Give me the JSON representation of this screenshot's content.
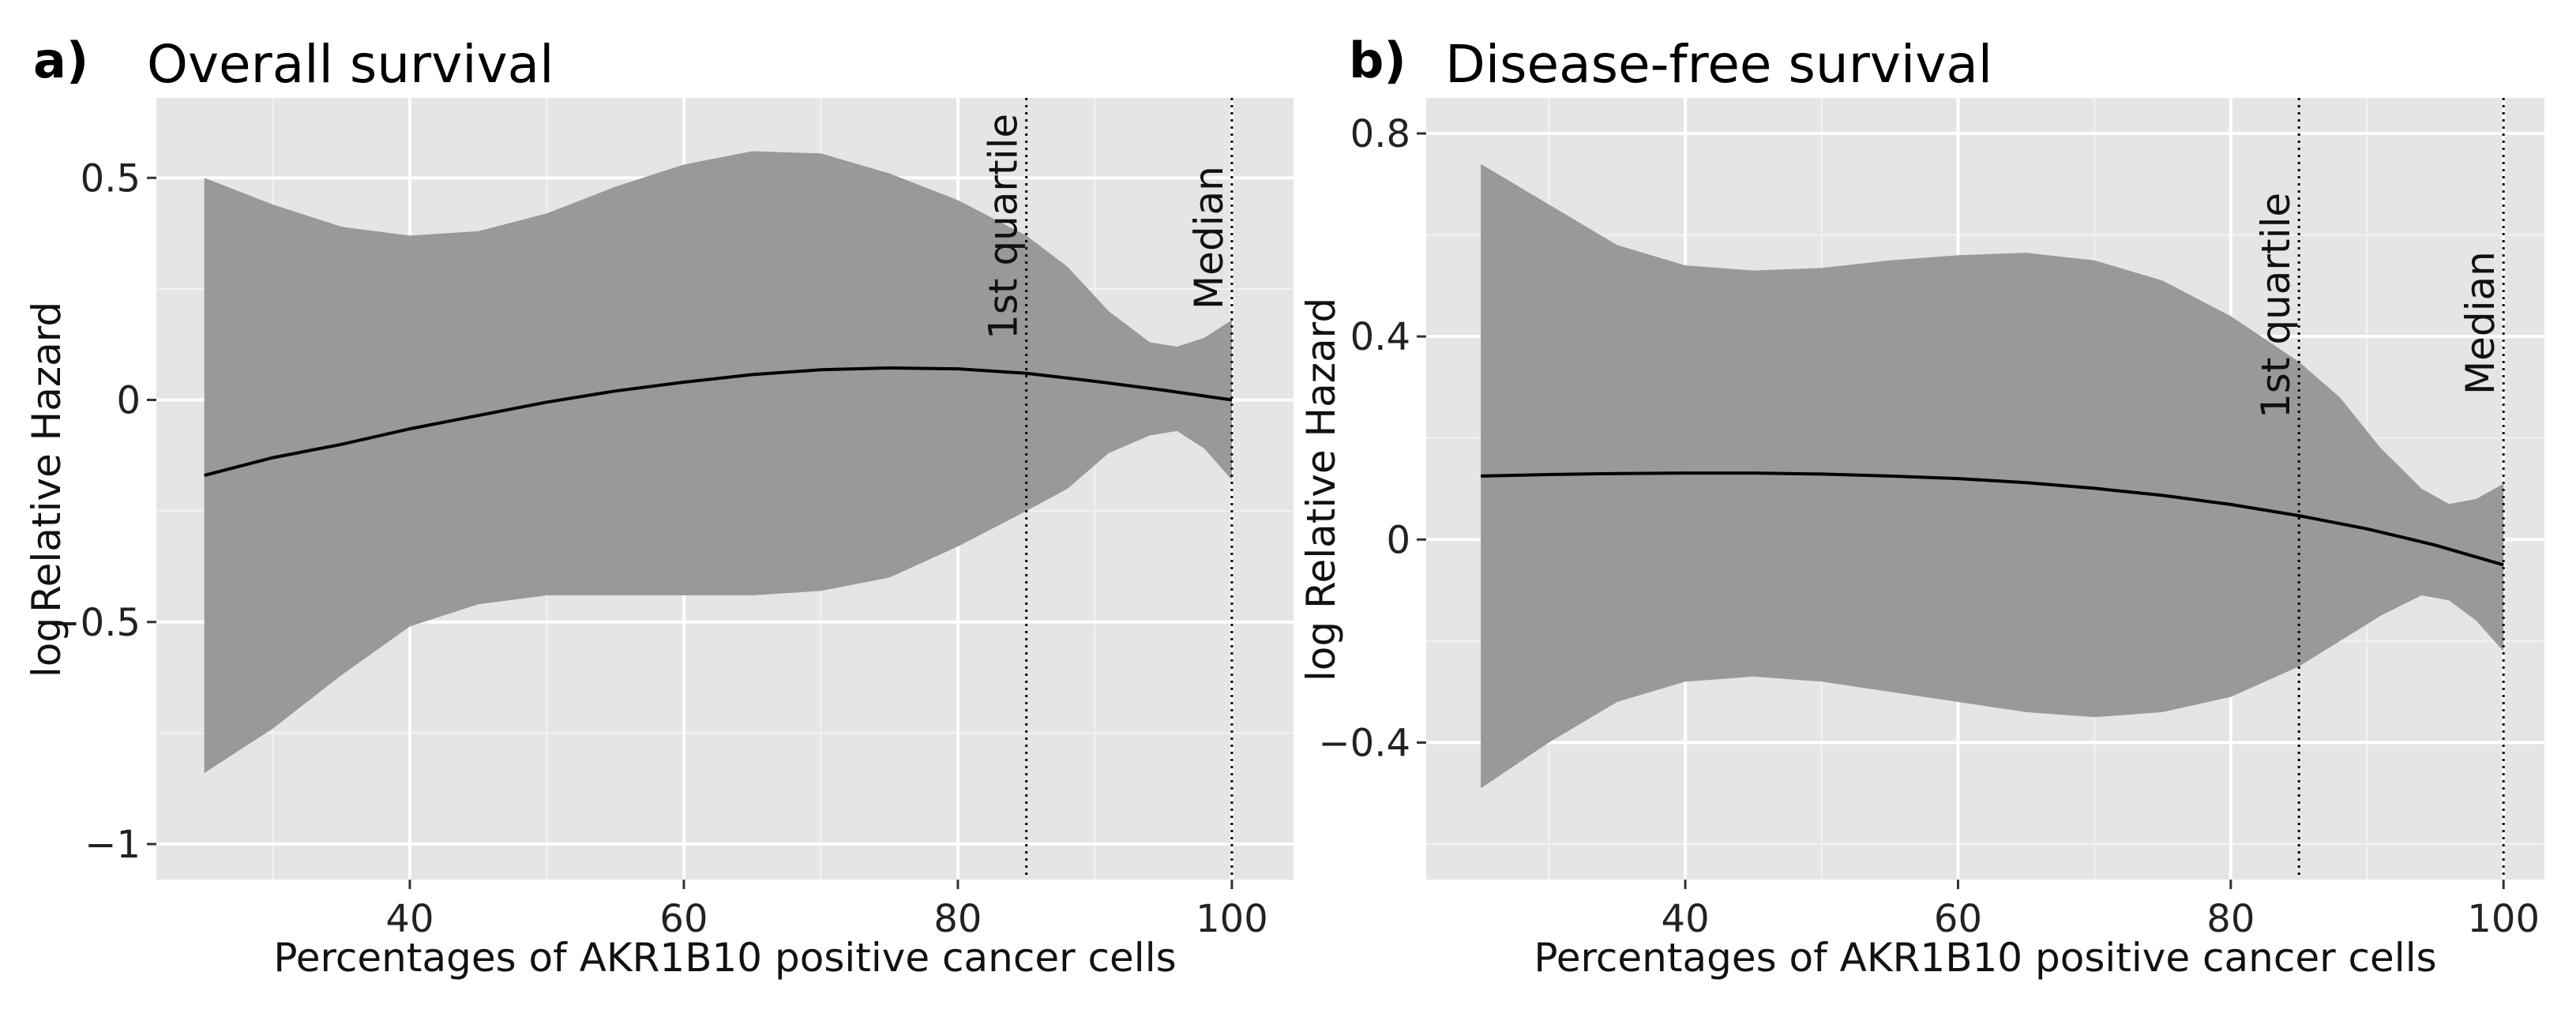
{
  "chart_data": [
    {
      "type": "line",
      "panel": "a)",
      "title": "Overall survival",
      "xlabel": "Percentages of AKR1B10 positive cancer cells",
      "ylabel_prefix": "log",
      "ylabel": "Relative Hazard",
      "xlim": [
        21.5,
        104.5
      ],
      "ylim": [
        -1.08,
        0.68
      ],
      "xticks": [
        40,
        60,
        80,
        100
      ],
      "xtick_labels": [
        "40",
        "60",
        "80",
        "100"
      ],
      "xminor": [
        30,
        50,
        70,
        90
      ],
      "yticks": [
        0.5,
        0,
        -0.5,
        -1
      ],
      "ytick_labels": [
        "0.5",
        "0",
        "−0.5",
        "−1"
      ],
      "yminor": [
        0.25,
        -0.25,
        -0.75
      ],
      "vlines": [
        {
          "x": 85,
          "label": "1st quartile"
        },
        {
          "x": 100,
          "label": "Median"
        }
      ],
      "series": [
        {
          "name": "estimate",
          "x": [
            25,
            30,
            35,
            40,
            45,
            50,
            55,
            60,
            65,
            70,
            75,
            80,
            85,
            90,
            95,
            100
          ],
          "y": [
            -0.17,
            -0.13,
            -0.1,
            -0.065,
            -0.035,
            -0.005,
            0.02,
            0.04,
            0.057,
            0.068,
            0.072,
            0.07,
            0.06,
            0.042,
            0.022,
            0.0
          ]
        }
      ],
      "band": {
        "x": [
          25,
          30,
          35,
          40,
          45,
          50,
          55,
          60,
          65,
          70,
          75,
          80,
          85,
          88,
          91,
          94,
          96,
          98,
          100
        ],
        "upper": [
          0.5,
          0.44,
          0.39,
          0.37,
          0.38,
          0.42,
          0.48,
          0.53,
          0.56,
          0.555,
          0.51,
          0.45,
          0.37,
          0.3,
          0.2,
          0.13,
          0.12,
          0.14,
          0.18
        ],
        "lower": [
          -0.84,
          -0.74,
          -0.62,
          -0.51,
          -0.46,
          -0.44,
          -0.44,
          -0.44,
          -0.44,
          -0.43,
          -0.4,
          -0.33,
          -0.25,
          -0.2,
          -0.12,
          -0.08,
          -0.07,
          -0.11,
          -0.18
        ]
      }
    },
    {
      "type": "line",
      "panel": "b)",
      "title": "Disease-free survival",
      "xlabel": "Percentages of AKR1B10 positive cancer cells",
      "ylabel_prefix": "",
      "ylabel": "log Relative Hazard",
      "xlim": [
        21.0,
        103.0
      ],
      "ylim": [
        -0.67,
        0.87
      ],
      "xticks": [
        40,
        60,
        80,
        100
      ],
      "xtick_labels": [
        "40",
        "60",
        "80",
        "100"
      ],
      "xminor": [
        30,
        50,
        70,
        90
      ],
      "yticks": [
        0.8,
        0.4,
        0,
        -0.4
      ],
      "ytick_labels": [
        "0.8",
        "0.4",
        "0",
        "−0.4"
      ],
      "yminor": [
        0.6,
        0.2,
        -0.2,
        -0.6
      ],
      "vlines": [
        {
          "x": 85,
          "label": "1st quartile"
        },
        {
          "x": 100,
          "label": "Median"
        }
      ],
      "series": [
        {
          "name": "estimate",
          "x": [
            25,
            30,
            35,
            40,
            45,
            50,
            55,
            60,
            65,
            70,
            75,
            80,
            85,
            90,
            95,
            100
          ],
          "y": [
            0.125,
            0.128,
            0.13,
            0.131,
            0.131,
            0.129,
            0.125,
            0.12,
            0.112,
            0.101,
            0.087,
            0.069,
            0.047,
            0.021,
            -0.011,
            -0.05
          ]
        }
      ],
      "band": {
        "x": [
          25,
          30,
          35,
          40,
          45,
          50,
          55,
          60,
          65,
          70,
          75,
          80,
          85,
          88,
          91,
          94,
          96,
          98,
          100
        ],
        "upper": [
          0.74,
          0.66,
          0.58,
          0.54,
          0.53,
          0.535,
          0.55,
          0.56,
          0.565,
          0.55,
          0.51,
          0.44,
          0.35,
          0.28,
          0.18,
          0.1,
          0.07,
          0.08,
          0.11
        ],
        "lower": [
          -0.49,
          -0.4,
          -0.32,
          -0.28,
          -0.27,
          -0.28,
          -0.3,
          -0.32,
          -0.34,
          -0.35,
          -0.34,
          -0.31,
          -0.25,
          -0.2,
          -0.15,
          -0.11,
          -0.12,
          -0.16,
          -0.22
        ]
      }
    }
  ]
}
